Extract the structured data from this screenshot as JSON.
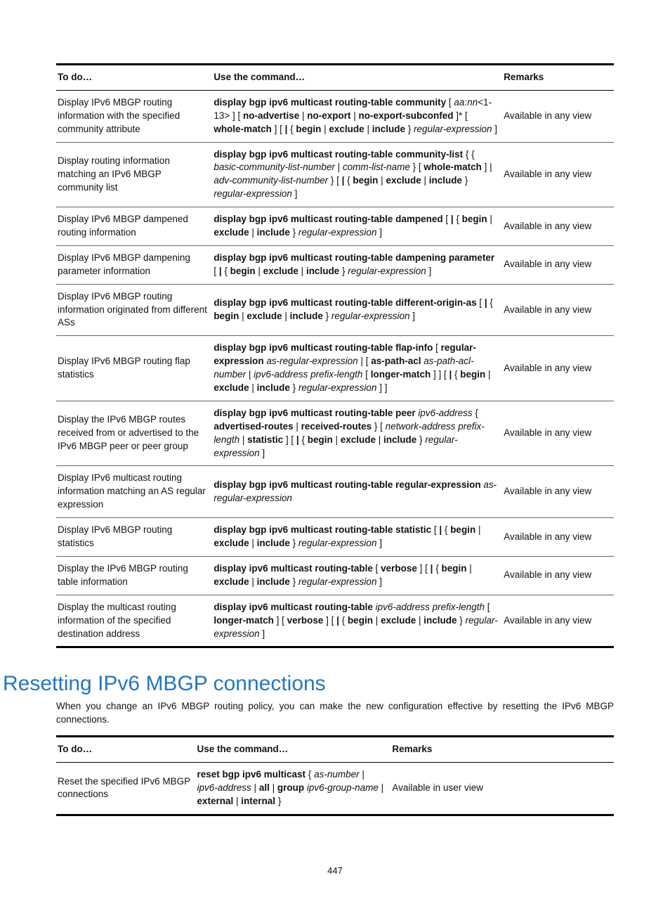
{
  "table1": {
    "headers": {
      "todo": "To do…",
      "cmd": "Use the command…",
      "rem": "Remarks"
    },
    "rows": [
      {
        "todo": "Display IPv6 MBGP routing information with the specified community attribute",
        "cmd": "<span class='bold'>display bgp ipv6 multicast routing-table community</span> [ <span class='italic'>aa:nn</span>&lt;1-13&gt; ] [ <span class='bold'>no-advertise</span> | <span class='bold'>no-export</span> | <span class='bold'>no-export-subconfed</span> ]* [ <span class='bold'>whole-match</span> ] [ <span class='bold'>|</span> { <span class='bold'>begin</span> | <span class='bold'>exclude</span> | <span class='bold'>include</span> } <span class='italic'>regular-expression</span> ]",
        "rem": "Available in any view"
      },
      {
        "todo": "Display routing information matching an IPv6 MBGP community list",
        "cmd": "<span class='bold'>display bgp ipv6 multicast routing-table community-list</span> { { <span class='italic'>basic-community-list-number</span> | <span class='italic'>comm-list-name</span> } [ <span class='bold'>whole-match</span> ] | <span class='italic'>adv-community-list-number</span> } [ <span class='bold'>|</span> { <span class='bold'>begin</span> | <span class='bold'>exclude</span> | <span class='bold'>include</span> } <span class='italic'>regular-expression</span> ]",
        "rem": "Available in any view"
      },
      {
        "todo": "Display IPv6 MBGP dampened routing information",
        "cmd": "<span class='bold'>display bgp ipv6 multicast routing-table dampened</span> [ <span class='bold'>|</span> { <span class='bold'>begin</span> | <span class='bold'>exclude</span> | <span class='bold'>include</span> } <span class='italic'>regular-expression</span> ]",
        "rem": "Available in any view"
      },
      {
        "todo": "Display IPv6 MBGP dampening parameter information",
        "cmd": "<span class='bold'>display bgp ipv6 multicast routing-table dampening parameter</span> [ <span class='bold'>|</span> { <span class='bold'>begin</span> | <span class='bold'>exclude</span> | <span class='bold'>include</span> } <span class='italic'>regular-expression</span> ]",
        "rem": "Available in any view"
      },
      {
        "todo": "Display IPv6 MBGP routing information originated from different ASs",
        "cmd": "<span class='bold'>display bgp ipv6 multicast routing-table different-origin-as</span> [ <span class='bold'>|</span> { <span class='bold'>begin</span> | <span class='bold'>exclude</span> | <span class='bold'>include</span> } <span class='italic'>regular-expression</span> ]",
        "rem": "Available in any view"
      },
      {
        "todo": "Display IPv6 MBGP routing flap statistics",
        "cmd": "<span class='bold'>display bgp ipv6 multicast routing-table flap-info</span> [ <span class='bold'>regular-expression</span> <span class='italic'>as-regular-expression</span> | [ <span class='bold'>as-path-acl</span> <span class='italic'>as-path-acl-number</span> | <span class='italic'>ipv6-address prefix-length</span> [ <span class='bold'>longer-match</span> ] ] [ <span class='bold'>|</span> { <span class='bold'>begin</span> | <span class='bold'>exclude</span> | <span class='bold'>include</span> } <span class='italic'>regular-expression</span> ] ]",
        "rem": "Available in any view"
      },
      {
        "todo": "Display the IPv6 MBGP routes received from or advertised to the IPv6 MBGP peer or peer group",
        "cmd": "<span class='bold'>display bgp ipv6 multicast routing-table peer</span> <span class='italic'>ipv6-address</span> { <span class='bold'>advertised-routes</span> | <span class='bold'>received-routes</span> } [ <span class='italic'>network-address prefix-length</span> | <span class='bold'>statistic</span> ] [ <span class='bold'>|</span> { <span class='bold'>begin</span> | <span class='bold'>exclude</span> | <span class='bold'>include</span> } <span class='italic'>regular-expression</span> ]",
        "rem": "Available in any view"
      },
      {
        "todo": "Display IPv6 multicast routing information matching an AS regular expression",
        "cmd": "<span class='bold'>display bgp ipv6 multicast routing-table regular-expression</span> <span class='italic'>as-regular-expression</span>",
        "rem": "Available in any view"
      },
      {
        "todo": "Display IPv6 MBGP routing statistics",
        "cmd": "<span class='bold'>display bgp ipv6 multicast routing-table statistic</span> [ <span class='bold'>|</span> { <span class='bold'>begin</span> | <span class='bold'>exclude</span> | <span class='bold'>include</span> } <span class='italic'>regular-expression</span> ]",
        "rem": "Available in any view"
      },
      {
        "todo": "Display the IPv6 MBGP routing table information",
        "cmd": "<span class='bold'>display ipv6 multicast routing-table</span> [ <span class='bold'>verbose</span> ] [ <span class='bold'>|</span> { <span class='bold'>begin</span> | <span class='bold'>exclude</span> | <span class='bold'>include</span> } <span class='italic'>regular-expression</span> ]",
        "rem": "Available in any view"
      },
      {
        "todo": "Display the multicast routing information of the specified destination address",
        "cmd": "<span class='bold'>display ipv6 multicast routing-table</span> <span class='italic'>ipv6-address prefix-length</span> [ <span class='bold'>longer-match</span> ] [ <span class='bold'>verbose</span> ] [ <span class='bold'>|</span> { <span class='bold'>begin</span> | <span class='bold'>exclude</span> | <span class='bold'>include</span> } <span class='italic'>regular-expression</span> ]",
        "rem": "Available in any view"
      }
    ]
  },
  "section_title": "Resetting IPv6 MBGP connections",
  "intro": "When you change an IPv6 MBGP routing policy, you can make the new configuration effective by resetting the IPv6 MBGP connections.",
  "table2": {
    "headers": {
      "todo": "To do…",
      "cmd": "Use the command…",
      "rem": "Remarks"
    },
    "rows": [
      {
        "todo": "Reset the specified IPv6 MBGP connections",
        "cmd": "<span class='bold'>reset bgp ipv6 multicast</span> { <span class='italic'>as-number</span> | <span class='italic'>ipv6-address</span> | <span class='bold'>all</span> | <span class='bold'>group</span> <span class='italic'>ipv6-group-name</span> | <span class='bold'>external</span> | <span class='bold'>internal</span> }",
        "rem": "Available in user view"
      }
    ]
  },
  "page_number": "447"
}
